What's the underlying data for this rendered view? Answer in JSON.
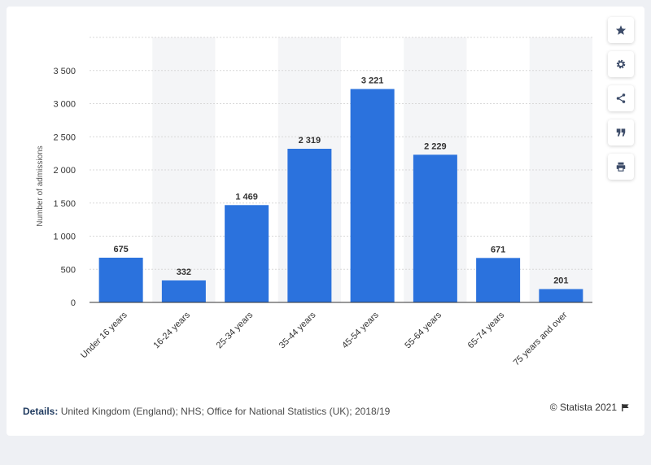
{
  "chart_data": {
    "type": "bar",
    "categories": [
      "Under 16 years",
      "16-24 years",
      "25-34 years",
      "35-44 years",
      "45-54 years",
      "55-64 years",
      "65-74 years",
      "75 years and over"
    ],
    "values": [
      675,
      332,
      1469,
      2319,
      3221,
      2229,
      671,
      201
    ],
    "value_labels": [
      "675",
      "332",
      "1 469",
      "2 319",
      "3 221",
      "2 229",
      "671",
      "201"
    ],
    "ylabel": "Number of admissions",
    "ylim": [
      0,
      4000
    ],
    "yticks": [
      0,
      500,
      1000,
      1500,
      2000,
      2500,
      3000,
      3500
    ],
    "ytick_labels": [
      "0",
      "500",
      "1 000",
      "1 500",
      "2 000",
      "2 500",
      "3 000",
      "3 500"
    ],
    "grid": true,
    "bar_color": "#2b72dd"
  },
  "toolbar": {
    "icons": [
      "star-icon",
      "gear-icon",
      "share-icon",
      "quote-icon",
      "print-icon"
    ]
  },
  "footer": {
    "details_label": "Details:",
    "details_text": "United Kingdom (England); NHS; Office for National Statistics (UK); 2018/19",
    "credit": "© Statista 2021"
  }
}
